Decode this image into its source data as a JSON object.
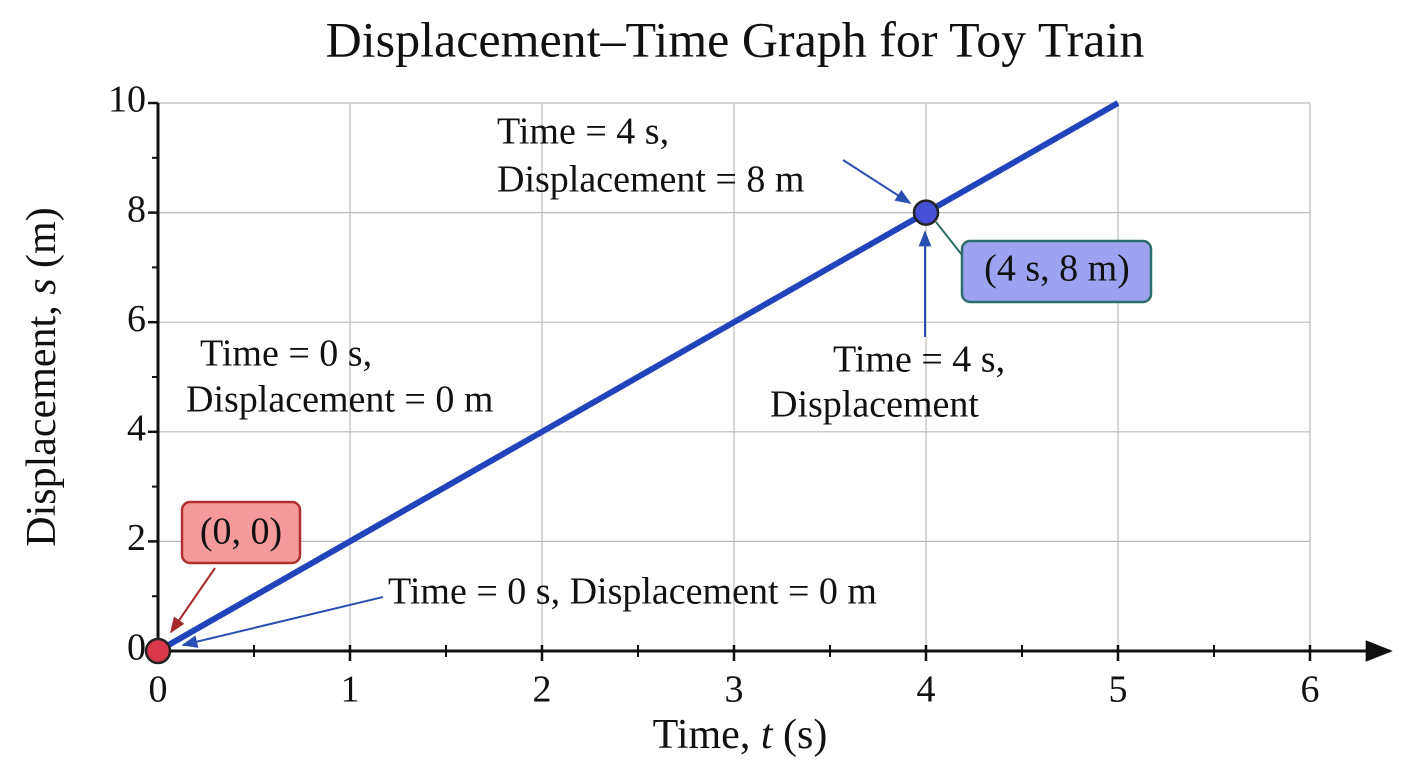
{
  "chart_data": {
    "type": "line",
    "title": "Displacement–Time Graph for Toy Train",
    "x_label_parts": [
      "Time, ",
      "t",
      " (s)"
    ],
    "y_label_parts": [
      "Displacement, ",
      "s",
      " (m)"
    ],
    "x": [
      0,
      1,
      2,
      3,
      4,
      5
    ],
    "values": [
      0,
      2,
      4,
      6,
      8,
      10
    ],
    "color": "#2244bb",
    "markers": [
      {
        "x": 0,
        "y": 0,
        "color": "#d8384a"
      },
      {
        "x": 4,
        "y": 8,
        "color": "#4650d6"
      }
    ],
    "xlim": [
      0,
      6
    ],
    "ylim": [
      0,
      10
    ],
    "xticks": [
      0,
      1,
      2,
      3,
      4,
      5,
      6
    ],
    "yticks": [
      0,
      2,
      4,
      6,
      8,
      10
    ],
    "xminor_ticks": [
      0.5,
      1.5,
      2.5,
      3.5,
      4.5,
      5.5
    ],
    "yminor_ticks": [
      1,
      3,
      5,
      7,
      9
    ],
    "grid": true,
    "annotations": [
      {
        "lines": [
          "Time = 4 s,",
          "Displacement = 8 m"
        ]
      },
      {
        "lines": [
          "(4 s, 8 m)"
        ]
      },
      {
        "lines": [
          "Time = 4 s,",
          "Displacement"
        ]
      },
      {
        "lines": [
          "Time = 0 s,",
          "Displacement = 0 m"
        ]
      },
      {
        "lines": [
          "(0, 0)"
        ]
      },
      {
        "lines": [
          "Time = 0 s, Displacement = 0 m"
        ]
      }
    ]
  }
}
